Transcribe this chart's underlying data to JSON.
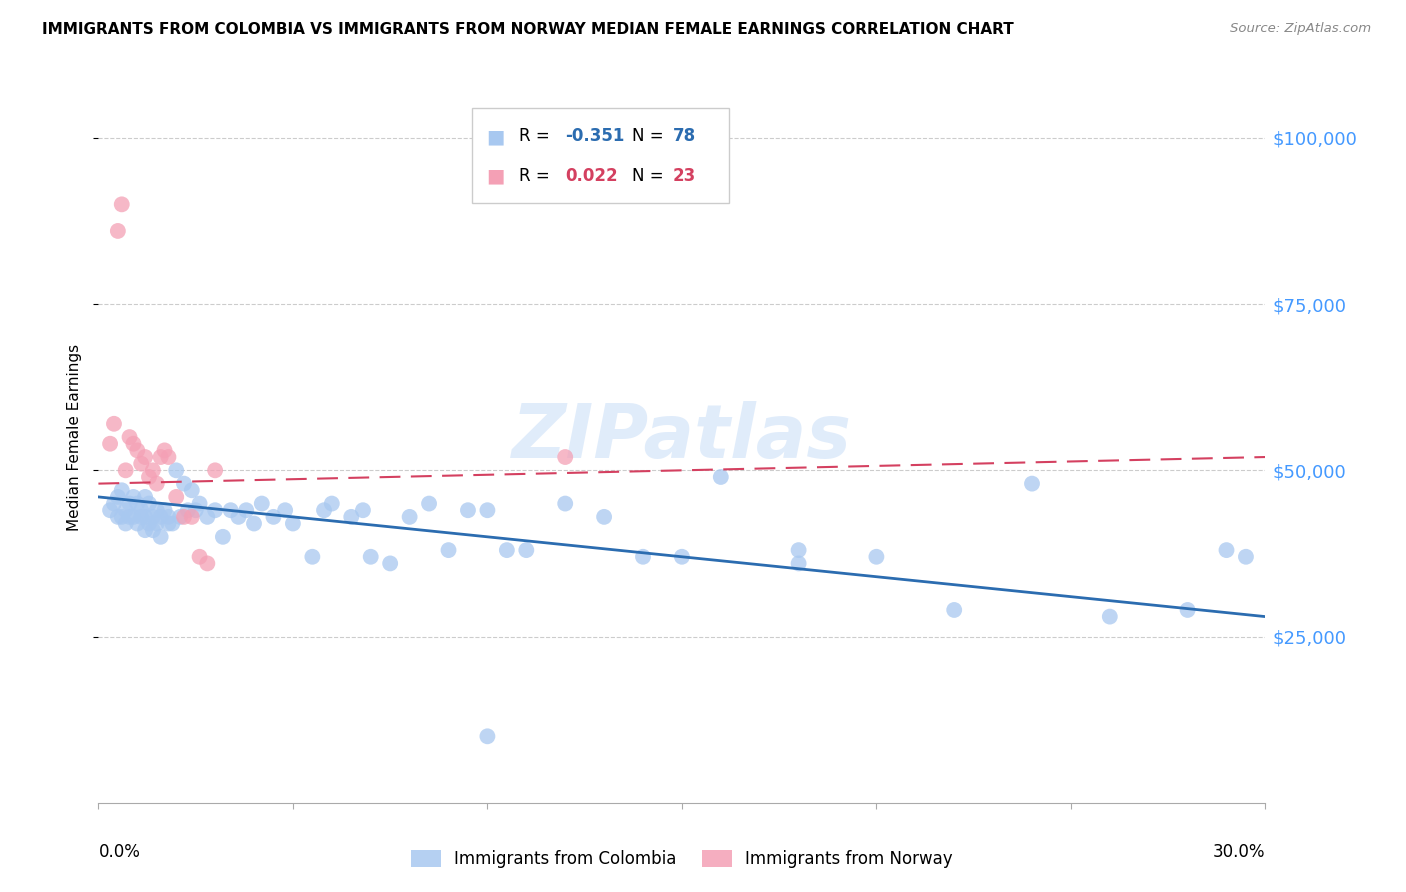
{
  "title": "IMMIGRANTS FROM COLOMBIA VS IMMIGRANTS FROM NORWAY MEDIAN FEMALE EARNINGS CORRELATION CHART",
  "source": "Source: ZipAtlas.com",
  "ylabel": "Median Female Earnings",
  "ytick_labels": [
    "$25,000",
    "$50,000",
    "$75,000",
    "$100,000"
  ],
  "ytick_values": [
    25000,
    50000,
    75000,
    100000
  ],
  "ymin": 0,
  "ymax": 110000,
  "xmin": 0.0,
  "xmax": 0.3,
  "colombia_color": "#a8c8f0",
  "norway_color": "#f4a0b5",
  "colombia_line_color": "#2b6cb0",
  "norway_line_color": "#d44060",
  "colombia_R": -0.351,
  "colombia_N": 78,
  "norway_R": 0.022,
  "norway_N": 23,
  "watermark": "ZIPatlas",
  "colombia_scatter_x": [
    0.003,
    0.004,
    0.005,
    0.005,
    0.006,
    0.006,
    0.007,
    0.007,
    0.008,
    0.008,
    0.009,
    0.009,
    0.01,
    0.01,
    0.011,
    0.011,
    0.012,
    0.012,
    0.012,
    0.013,
    0.013,
    0.014,
    0.014,
    0.015,
    0.015,
    0.016,
    0.016,
    0.017,
    0.018,
    0.018,
    0.019,
    0.02,
    0.021,
    0.022,
    0.023,
    0.024,
    0.025,
    0.026,
    0.028,
    0.03,
    0.032,
    0.034,
    0.036,
    0.038,
    0.04,
    0.042,
    0.045,
    0.048,
    0.05,
    0.055,
    0.058,
    0.06,
    0.065,
    0.068,
    0.07,
    0.075,
    0.08,
    0.085,
    0.09,
    0.095,
    0.1,
    0.105,
    0.11,
    0.12,
    0.13,
    0.14,
    0.15,
    0.16,
    0.18,
    0.2,
    0.22,
    0.24,
    0.26,
    0.28,
    0.29,
    0.295,
    0.18,
    0.1
  ],
  "colombia_scatter_y": [
    44000,
    45000,
    46000,
    43000,
    47000,
    43000,
    44000,
    42000,
    45000,
    43000,
    46000,
    43000,
    45000,
    42000,
    44000,
    43000,
    46000,
    43000,
    41000,
    45000,
    42000,
    43000,
    41000,
    44000,
    42000,
    43000,
    40000,
    44000,
    43000,
    42000,
    42000,
    50000,
    43000,
    48000,
    44000,
    47000,
    44000,
    45000,
    43000,
    44000,
    40000,
    44000,
    43000,
    44000,
    42000,
    45000,
    43000,
    44000,
    42000,
    37000,
    44000,
    45000,
    43000,
    44000,
    37000,
    36000,
    43000,
    45000,
    38000,
    44000,
    44000,
    38000,
    38000,
    45000,
    43000,
    37000,
    37000,
    49000,
    38000,
    37000,
    29000,
    48000,
    28000,
    29000,
    38000,
    37000,
    36000,
    10000
  ],
  "norway_scatter_x": [
    0.003,
    0.004,
    0.005,
    0.006,
    0.007,
    0.008,
    0.009,
    0.01,
    0.011,
    0.012,
    0.013,
    0.014,
    0.015,
    0.016,
    0.017,
    0.018,
    0.02,
    0.022,
    0.024,
    0.026,
    0.028,
    0.03,
    0.12
  ],
  "norway_scatter_y": [
    54000,
    57000,
    86000,
    90000,
    50000,
    55000,
    54000,
    53000,
    51000,
    52000,
    49000,
    50000,
    48000,
    52000,
    53000,
    52000,
    46000,
    43000,
    43000,
    37000,
    36000,
    50000,
    52000
  ],
  "colombia_line_x": [
    0.0,
    0.3
  ],
  "colombia_line_y": [
    46000,
    28000
  ],
  "norway_line_x": [
    0.0,
    0.3
  ],
  "norway_line_y": [
    48000,
    52000
  ]
}
